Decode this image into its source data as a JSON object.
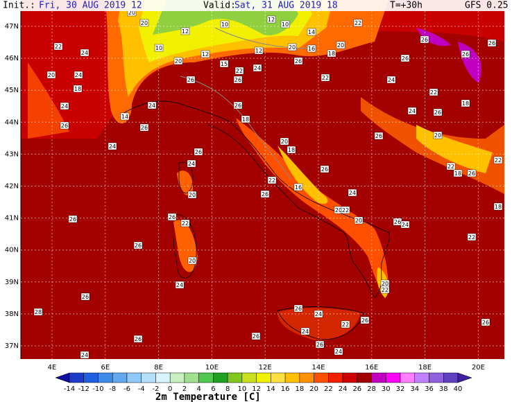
{
  "header": {
    "init_label": "Init.:",
    "init_time": "Fri, 30 AUG 2019  12",
    "valid_label": "Valid:",
    "valid_time": "Sat, 31 AUG 2019  18",
    "lead_time": "T=+30h",
    "model": "GFS 0.25"
  },
  "map": {
    "lat_labels": [
      "47N",
      "46N",
      "45N",
      "44N",
      "43N",
      "42N",
      "41N",
      "40N",
      "39N",
      "38N",
      "37N"
    ],
    "lon_labels": [
      "4E",
      "6E",
      "8E",
      "10E",
      "12E",
      "14E",
      "16E",
      "18E",
      "20E"
    ],
    "stations": [
      "20",
      "20",
      "12",
      "10",
      "12",
      "10",
      "14",
      "22",
      "22",
      "24",
      "10",
      "12",
      "20",
      "15",
      "12",
      "20",
      "16",
      "18",
      "20",
      "26",
      "26",
      "26",
      "26",
      "20",
      "24",
      "18",
      "24",
      "26",
      "22",
      "26",
      "26",
      "22",
      "24",
      "24",
      "24",
      "14",
      "26",
      "18",
      "26",
      "26",
      "24",
      "20",
      "18",
      "26",
      "26",
      "24",
      "22",
      "16",
      "26",
      "26",
      "24",
      "20",
      "26",
      "26",
      "22",
      "20",
      "22",
      "20",
      "26",
      "24",
      "26",
      "20",
      "24",
      "26",
      "20",
      "22",
      "28",
      "26",
      "24",
      "22",
      "26",
      "26",
      "26",
      "24",
      "26",
      "24",
      "24",
      "26",
      "22",
      "18",
      "22",
      "26",
      "22",
      "18",
      "20",
      "26",
      "18",
      "24",
      "22"
    ]
  },
  "colorbar": {
    "title": "2m Temperature [C]",
    "ticks": [
      -14,
      -12,
      -10,
      -8,
      -6,
      -4,
      -2,
      0,
      2,
      4,
      6,
      8,
      10,
      12,
      14,
      16,
      18,
      20,
      22,
      24,
      26,
      28,
      30,
      32,
      34,
      36,
      38,
      40
    ],
    "colors": [
      "#1010a0",
      "#1c3cc8",
      "#2060e0",
      "#3c8ce8",
      "#64a8f0",
      "#90c8f8",
      "#b4e0fc",
      "#d8f4ff",
      "#c8f0c0",
      "#a0e090",
      "#50c850",
      "#20a020",
      "#80c820",
      "#c8e020",
      "#f0f000",
      "#ffe040",
      "#ffc000",
      "#ff9000",
      "#ff5000",
      "#f02000",
      "#d00000",
      "#a00000",
      "#c000c0",
      "#ff00ff",
      "#ff80ff",
      "#c080ff",
      "#9060e0",
      "#6040c0",
      "#4020a0"
    ]
  }
}
